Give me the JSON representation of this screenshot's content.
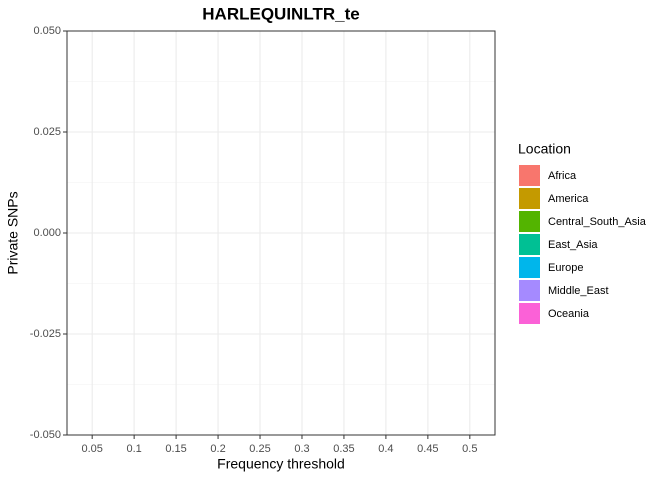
{
  "chart_data": {
    "type": "bar",
    "title": "HARLEQUINLTR_te",
    "x_label": "Frequency threshold",
    "y_label": "Private SNPs",
    "categories": [
      "0.05",
      "0.1",
      "0.15",
      "0.2",
      "0.25",
      "0.3",
      "0.35",
      "0.4",
      "0.45",
      "0.5"
    ],
    "legend_title": "Location",
    "series": [
      {
        "name": "Africa",
        "color": "#F8766D",
        "values": [
          null,
          null,
          null,
          null,
          null,
          null,
          null,
          null,
          null,
          null
        ]
      },
      {
        "name": "America",
        "color": "#C49A00",
        "values": [
          null,
          null,
          null,
          null,
          null,
          null,
          null,
          null,
          null,
          null
        ]
      },
      {
        "name": "Central_South_Asia",
        "color": "#53B400",
        "values": [
          null,
          null,
          null,
          null,
          null,
          null,
          null,
          null,
          null,
          null
        ]
      },
      {
        "name": "East_Asia",
        "color": "#00C094",
        "values": [
          null,
          null,
          null,
          null,
          null,
          null,
          null,
          null,
          null,
          null
        ]
      },
      {
        "name": "Europe",
        "color": "#00B6EB",
        "values": [
          null,
          null,
          null,
          null,
          null,
          null,
          null,
          null,
          null,
          null
        ]
      },
      {
        "name": "Middle_East",
        "color": "#A58AFF",
        "values": [
          null,
          null,
          null,
          null,
          null,
          null,
          null,
          null,
          null,
          null
        ]
      },
      {
        "name": "Oceania",
        "color": "#FB61D7",
        "values": [
          null,
          null,
          null,
          null,
          null,
          null,
          null,
          null,
          null,
          null
        ]
      }
    ],
    "ylim": [
      -0.05,
      0.05
    ],
    "yticks": [
      {
        "value": -0.05,
        "label": "-0.050"
      },
      {
        "value": -0.025,
        "label": "-0.025"
      },
      {
        "value": 0,
        "label": "0.000"
      },
      {
        "value": 0.025,
        "label": "0.025"
      },
      {
        "value": 0.05,
        "label": "0.050"
      }
    ],
    "grid": true,
    "legend_position": "right"
  }
}
